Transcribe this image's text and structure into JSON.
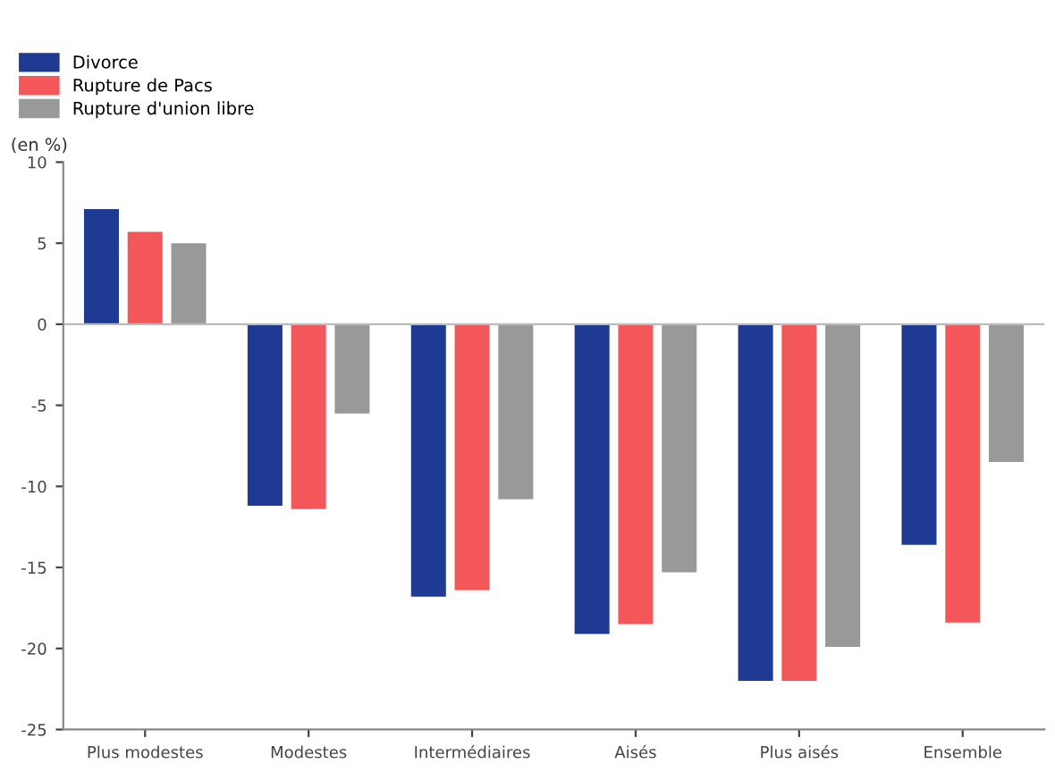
{
  "chart_data": {
    "type": "bar",
    "ylabel": "(en %)",
    "categories": [
      "Plus modestes",
      "Modestes",
      "Intermédiaires",
      "Aisés",
      "Plus aisés",
      "Ensemble"
    ],
    "series": [
      {
        "name": "Divorce",
        "color": "#1f3a93",
        "values": [
          7.1,
          -11.2,
          -16.8,
          -19.1,
          -22,
          -13.6
        ]
      },
      {
        "name": "Rupture de Pacs",
        "color": "#f4575a",
        "values": [
          5.7,
          -11.4,
          -16.4,
          -18.5,
          -22,
          -18.4
        ]
      },
      {
        "name": "Rupture d'union libre",
        "color": "#999999",
        "values": [
          5.0,
          -5.5,
          -10.8,
          -15.3,
          -19.9,
          -8.5
        ]
      }
    ],
    "ylim": [
      -25,
      10
    ],
    "yticks": [
      -25,
      -20,
      -15,
      -10,
      -5,
      0,
      5,
      10
    ],
    "ref_lines": [
      {
        "axis": "y",
        "value": 0,
        "color": "#bbbbbb"
      }
    ],
    "grid": false,
    "legend": "top left"
  }
}
